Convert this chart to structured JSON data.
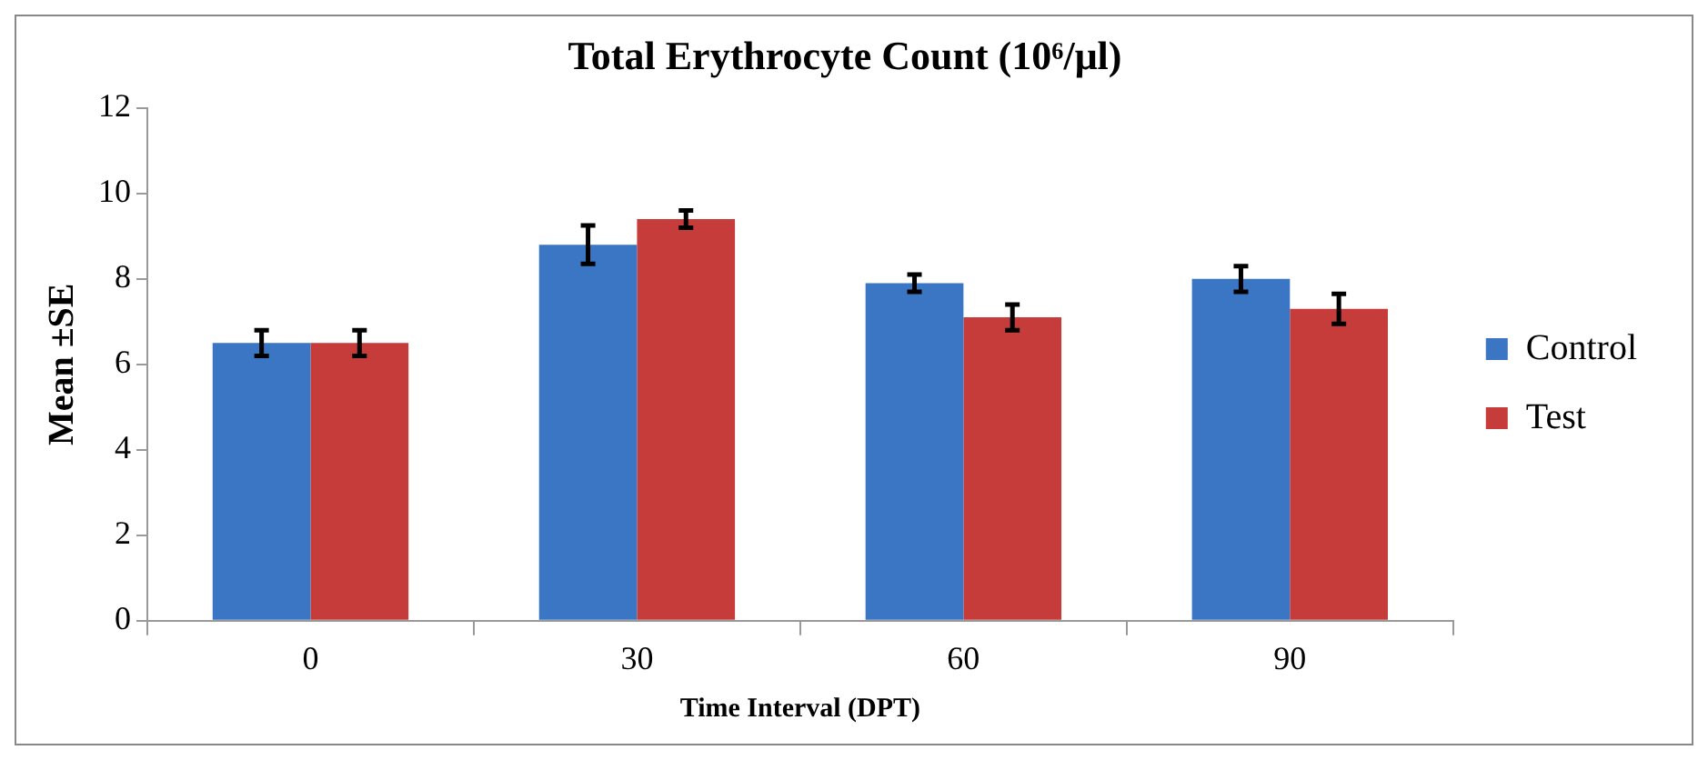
{
  "chart_data": {
    "type": "bar",
    "title": "Total Erythrocyte Count (10⁶/μl)",
    "xlabel": "Time Interval (DPT)",
    "ylabel": "Mean ±SE",
    "categories": [
      "0",
      "30",
      "60",
      "90"
    ],
    "series": [
      {
        "name": "Control",
        "color": "#3a76c4",
        "values": [
          6.5,
          8.8,
          7.9,
          8.0
        ],
        "errors": [
          0.3,
          0.45,
          0.2,
          0.3
        ]
      },
      {
        "name": "Test",
        "color": "#c63c3a",
        "values": [
          6.5,
          9.4,
          7.1,
          7.3
        ],
        "errors": [
          0.3,
          0.2,
          0.3,
          0.35
        ]
      }
    ],
    "ylim": [
      0,
      12
    ],
    "yticks": [
      0,
      2,
      4,
      6,
      8,
      10,
      12
    ],
    "grid": false,
    "legend": "right"
  }
}
